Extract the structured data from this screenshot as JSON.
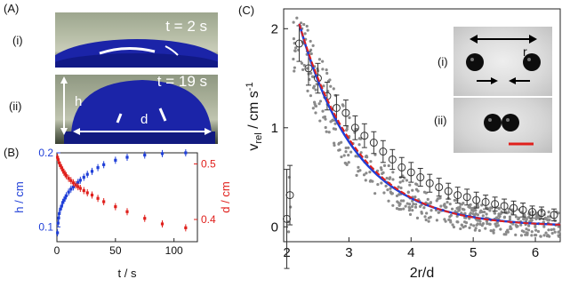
{
  "panel_a": {
    "label": "(A)",
    "sub_i": "(i)",
    "sub_ii": "(ii)",
    "time_i": "t = 2 s",
    "time_ii": "t = 19 s",
    "h_label": "h",
    "d_label": "d"
  },
  "panel_b": {
    "label": "(B)"
  },
  "panel_c": {
    "label": "(C)",
    "inset_i": "(i)",
    "inset_ii": "(ii)",
    "r_label": "r"
  },
  "chart_data": [
    {
      "type": "scatter",
      "panel": "B",
      "xlabel": "t / s",
      "ylabel_left": "h / cm",
      "ylabel_right": "d / cm",
      "xlim": [
        0,
        120
      ],
      "ylim_left": [
        0.08,
        0.2
      ],
      "ylim_right": [
        0.36,
        0.52
      ],
      "xticks": [
        0,
        50,
        100
      ],
      "yticks_left": [
        0.1,
        0.2
      ],
      "yticks_right": [
        0.4,
        0.5
      ],
      "colors": {
        "h": "#1f3fd8",
        "d": "#e0201c"
      },
      "series": [
        {
          "axis": "left",
          "color_key": "h",
          "x": [
            0.5,
            1,
            1.5,
            2,
            3,
            4,
            5,
            6,
            7,
            8,
            10,
            12,
            14,
            16,
            18,
            20,
            23,
            26,
            30,
            35,
            40,
            50,
            60,
            75,
            90,
            110
          ],
          "y": [
            0.092,
            0.105,
            0.112,
            0.118,
            0.124,
            0.128,
            0.133,
            0.136,
            0.139,
            0.142,
            0.147,
            0.151,
            0.154,
            0.157,
            0.16,
            0.163,
            0.167,
            0.171,
            0.175,
            0.18,
            0.184,
            0.19,
            0.194,
            0.197,
            0.199,
            0.2
          ]
        },
        {
          "axis": "right",
          "color_key": "d",
          "x": [
            0.5,
            1,
            2,
            3,
            4,
            5,
            6,
            7,
            8,
            10,
            12,
            14,
            16,
            18,
            20,
            23,
            26,
            30,
            35,
            40,
            50,
            60,
            75,
            90,
            110
          ],
          "y": [
            0.512,
            0.508,
            0.502,
            0.497,
            0.493,
            0.489,
            0.485,
            0.482,
            0.479,
            0.474,
            0.47,
            0.466,
            0.462,
            0.459,
            0.456,
            0.452,
            0.448,
            0.444,
            0.438,
            0.432,
            0.423,
            0.414,
            0.402,
            0.392,
            0.385
          ]
        }
      ]
    },
    {
      "type": "scatter",
      "panel": "C",
      "xlabel": "2r/d",
      "ylabel": "v_rel / cm s^-1",
      "xlim": [
        1.95,
        6.4
      ],
      "ylim": [
        -0.15,
        2.2
      ],
      "xticks": [
        2,
        3,
        4,
        5,
        6
      ],
      "yticks": [
        0,
        1,
        2
      ],
      "colors": {
        "points": "#8a8a8a",
        "fit_blue": "#1f3fd8",
        "fit_red": "#e0201c",
        "mean": "#333333"
      },
      "mean_points": {
        "x": [
          2.0,
          2.05,
          2.2,
          2.35,
          2.5,
          2.65,
          2.8,
          2.95,
          3.1,
          3.25,
          3.4,
          3.55,
          3.7,
          3.85,
          4.0,
          4.15,
          4.3,
          4.45,
          4.6,
          4.75,
          4.9,
          5.05,
          5.2,
          5.35,
          5.5,
          5.65,
          5.8,
          5.95,
          6.1,
          6.3
        ],
        "y": [
          0.08,
          0.32,
          1.85,
          1.6,
          1.5,
          1.32,
          1.2,
          1.15,
          1.0,
          0.92,
          0.85,
          0.76,
          0.68,
          0.6,
          0.55,
          0.5,
          0.44,
          0.4,
          0.36,
          0.32,
          0.3,
          0.27,
          0.25,
          0.23,
          0.21,
          0.19,
          0.17,
          0.15,
          0.14,
          0.12
        ],
        "err": [
          0.5,
          0.3,
          0.18,
          0.17,
          0.15,
          0.14,
          0.13,
          0.13,
          0.12,
          0.12,
          0.11,
          0.11,
          0.1,
          0.1,
          0.1,
          0.09,
          0.09,
          0.09,
          0.08,
          0.08,
          0.08,
          0.08,
          0.07,
          0.07,
          0.07,
          0.07,
          0.07,
          0.06,
          0.06,
          0.06
        ]
      },
      "fit": {
        "amplitude": 2.05,
        "x0": 2.2,
        "decay": 0.92,
        "x_start": 2.2,
        "x_end": 6.4
      }
    }
  ]
}
